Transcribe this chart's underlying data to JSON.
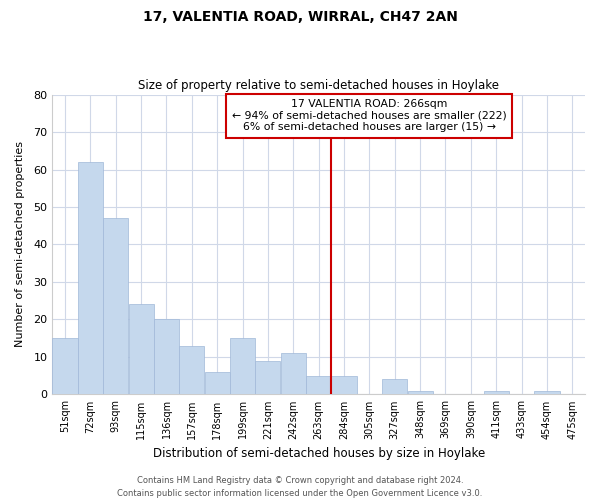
{
  "title": "17, VALENTIA ROAD, WIRRAL, CH47 2AN",
  "subtitle": "Size of property relative to semi-detached houses in Hoylake",
  "xlabel": "Distribution of semi-detached houses by size in Hoylake",
  "ylabel": "Number of semi-detached properties",
  "bar_labels": [
    "51sqm",
    "72sqm",
    "93sqm",
    "115sqm",
    "136sqm",
    "157sqm",
    "178sqm",
    "199sqm",
    "221sqm",
    "242sqm",
    "263sqm",
    "284sqm",
    "305sqm",
    "327sqm",
    "348sqm",
    "369sqm",
    "390sqm",
    "411sqm",
    "433sqm",
    "454sqm",
    "475sqm"
  ],
  "bar_values": [
    15,
    62,
    47,
    24,
    20,
    13,
    6,
    15,
    9,
    11,
    5,
    5,
    0,
    4,
    1,
    0,
    0,
    1,
    0,
    1,
    0
  ],
  "bar_color": "#c5d8ed",
  "bar_edge_color": "#a0b8d8",
  "vline_index": 10,
  "vline_color": "#cc0000",
  "ylim": [
    0,
    80
  ],
  "yticks": [
    0,
    10,
    20,
    30,
    40,
    50,
    60,
    70,
    80
  ],
  "annotation_title": "17 VALENTIA ROAD: 266sqm",
  "annotation_line1": "← 94% of semi-detached houses are smaller (222)",
  "annotation_line2": "6% of semi-detached houses are larger (15) →",
  "footer_line1": "Contains HM Land Registry data © Crown copyright and database right 2024.",
  "footer_line2": "Contains public sector information licensed under the Open Government Licence v3.0.",
  "background_color": "#ffffff",
  "grid_color": "#d0d8e8"
}
